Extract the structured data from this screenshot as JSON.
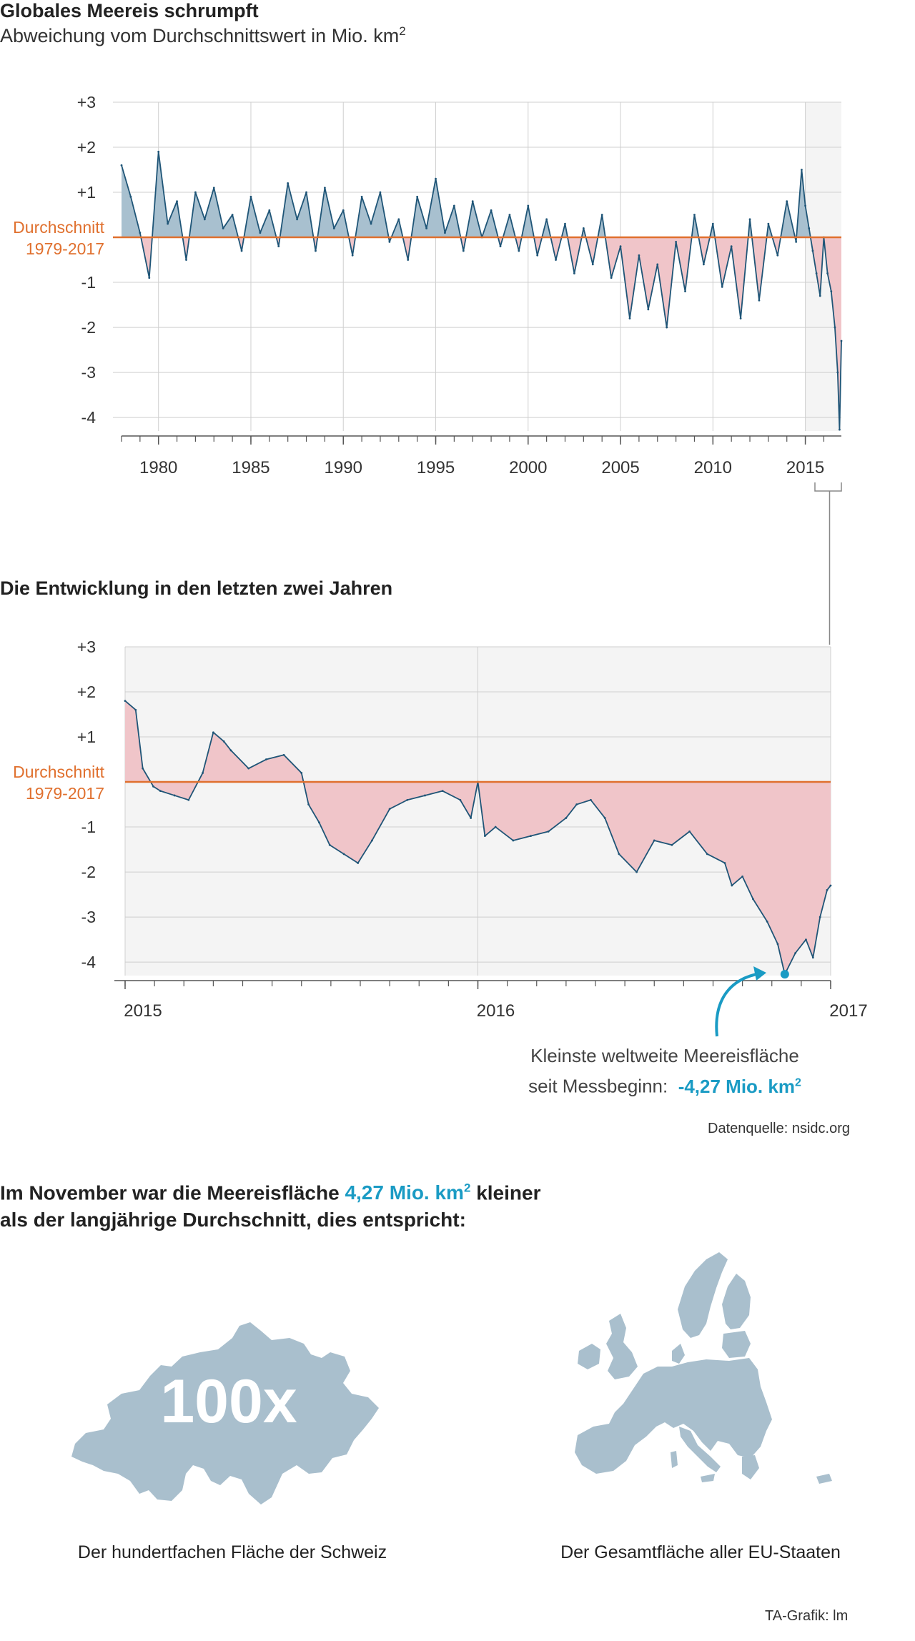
{
  "header": {
    "title": "Globales Meereis schrumpft",
    "subtitle": "Abweichung vom Durchschnittswert in Mio. km",
    "subtitle_sup": "2"
  },
  "section2": {
    "title": "Die Entwicklung in den letzten zwei Jahren"
  },
  "annotation": {
    "line1": "Kleinste weltweite Meereisfläche",
    "line2": "seit Messbeginn:",
    "value": "-4,27 Mio. km",
    "value_sup": "2"
  },
  "source": "Datenquelle: nsidc.org",
  "summary": {
    "text1": "Im November war die Meereisfläche",
    "highlight": "4,27 Mio. km",
    "highlight_sup": "2",
    "text2": "kleiner",
    "line2": "als der langjährige Durchschnitt, dies entspricht:"
  },
  "comparisons": {
    "switzerland": {
      "badge": "100x",
      "caption": "Der hundertfachen Fläche der Schweiz"
    },
    "eu": {
      "caption": "Der Gesamtfläche aller EU-Staaten"
    }
  },
  "credit": "TA-Grafik: lm",
  "colors": {
    "line": "#1f5577",
    "positive_fill": "#a8c0cf",
    "negative_fill": "#f0c5c9",
    "average_line": "#e0702e",
    "highlight": "#1a9bc4",
    "map_fill": "#a9bfcd",
    "panel_bg": "#f4f4f4",
    "grid": "#cfcfcf"
  },
  "chart_data": [
    {
      "type": "area",
      "title": "Globales Meereis schrumpft",
      "ylabel": "Abweichung vom Durchschnittswert in Mio. km2",
      "ylim": [
        -4.3,
        3
      ],
      "xlim": [
        1978.0,
        2016.95
      ],
      "yticks": [
        3,
        2,
        1,
        0,
        -1,
        -2,
        -3,
        -4
      ],
      "ytick_labels": [
        "+3",
        "+2",
        "+1",
        "",
        "-1",
        "-2",
        "-3",
        "-4"
      ],
      "xticks": [
        1980,
        1985,
        1990,
        1995,
        2000,
        2005,
        2010,
        2015
      ],
      "xtick_labels": [
        "1980",
        "1985",
        "1990",
        "1995",
        "2000",
        "2005",
        "2010",
        "2015"
      ],
      "reference": {
        "value": 0,
        "label_line1": "Durchschnitt",
        "label_line2": "1979-2017"
      },
      "highlight_range": [
        2015.0,
        2016.95
      ],
      "grid": true,
      "x": [
        1978.0,
        1978.5,
        1979.0,
        1979.5,
        1980.0,
        1980.5,
        1981.0,
        1981.5,
        1982.0,
        1982.5,
        1983.0,
        1983.5,
        1984.0,
        1984.5,
        1985.0,
        1985.5,
        1986.0,
        1986.5,
        1987.0,
        1987.5,
        1988.0,
        1988.5,
        1989.0,
        1989.5,
        1990.0,
        1990.5,
        1991.0,
        1991.5,
        1992.0,
        1992.5,
        1993.0,
        1993.5,
        1994.0,
        1994.5,
        1995.0,
        1995.5,
        1996.0,
        1996.5,
        1997.0,
        1997.5,
        1998.0,
        1998.5,
        1999.0,
        1999.5,
        2000.0,
        2000.5,
        2001.0,
        2001.5,
        2002.0,
        2002.5,
        2003.0,
        2003.5,
        2004.0,
        2004.5,
        2005.0,
        2005.5,
        2006.0,
        2006.5,
        2007.0,
        2007.5,
        2008.0,
        2008.5,
        2009.0,
        2009.5,
        2010.0,
        2010.5,
        2011.0,
        2011.5,
        2012.0,
        2012.5,
        2013.0,
        2013.5,
        2014.0,
        2014.5,
        2014.8,
        2015.0,
        2015.2,
        2015.4,
        2015.6,
        2015.8,
        2016.0,
        2016.2,
        2016.4,
        2016.6,
        2016.75,
        2016.85,
        2016.95
      ],
      "values": [
        1.6,
        0.9,
        0.1,
        -0.9,
        1.9,
        0.3,
        0.8,
        -0.5,
        1.0,
        0.4,
        1.1,
        0.2,
        0.5,
        -0.3,
        0.9,
        0.1,
        0.6,
        -0.2,
        1.2,
        0.4,
        1.0,
        -0.3,
        1.1,
        0.2,
        0.6,
        -0.4,
        0.9,
        0.3,
        1.0,
        -0.1,
        0.4,
        -0.5,
        0.9,
        0.2,
        1.3,
        0.1,
        0.7,
        -0.3,
        0.8,
        0.0,
        0.6,
        -0.2,
        0.5,
        -0.3,
        0.7,
        -0.4,
        0.4,
        -0.5,
        0.3,
        -0.8,
        0.2,
        -0.6,
        0.5,
        -0.9,
        -0.2,
        -1.8,
        -0.4,
        -1.6,
        -0.6,
        -2.0,
        -0.1,
        -1.2,
        0.5,
        -0.6,
        0.3,
        -1.1,
        -0.2,
        -1.8,
        0.4,
        -1.4,
        0.3,
        -0.4,
        0.8,
        -0.1,
        1.5,
        0.7,
        0.2,
        -0.3,
        -0.8,
        -1.3,
        0.0,
        -0.8,
        -1.2,
        -2.0,
        -3.0,
        -4.27,
        -2.3
      ]
    },
    {
      "type": "area",
      "title": "Die Entwicklung in den letzten zwei Jahren",
      "ylim": [
        -4.3,
        3
      ],
      "xlim": [
        2015.0,
        2017.0
      ],
      "yticks": [
        3,
        2,
        1,
        0,
        -1,
        -2,
        -3,
        -4
      ],
      "ytick_labels": [
        "+3",
        "+2",
        "+1",
        "",
        "-1",
        "-2",
        "-3",
        "-4"
      ],
      "xticks": [
        2015,
        2016,
        2017
      ],
      "xtick_labels": [
        "2015",
        "2016",
        "2017"
      ],
      "reference": {
        "value": 0,
        "label_line1": "Durchschnitt",
        "label_line2": "1979-2017"
      },
      "grid": true,
      "x": [
        2015.0,
        2015.03,
        2015.05,
        2015.08,
        2015.1,
        2015.14,
        2015.18,
        2015.22,
        2015.25,
        2015.28,
        2015.3,
        2015.35,
        2015.4,
        2015.45,
        2015.5,
        2015.52,
        2015.55,
        2015.58,
        2015.62,
        2015.66,
        2015.7,
        2015.75,
        2015.8,
        2015.85,
        2015.9,
        2015.95,
        2015.98,
        2016.0,
        2016.02,
        2016.05,
        2016.1,
        2016.15,
        2016.2,
        2016.25,
        2016.28,
        2016.32,
        2016.36,
        2016.4,
        2016.45,
        2016.5,
        2016.55,
        2016.6,
        2016.65,
        2016.7,
        2016.72,
        2016.75,
        2016.78,
        2016.82,
        2016.85,
        2016.87,
        2016.9,
        2016.93,
        2016.95,
        2016.97,
        2016.99,
        2017.0
      ],
      "values": [
        1.8,
        1.6,
        0.3,
        -0.1,
        -0.2,
        -0.3,
        -0.4,
        0.2,
        1.1,
        0.9,
        0.7,
        0.3,
        0.5,
        0.6,
        0.2,
        -0.5,
        -0.9,
        -1.4,
        -1.6,
        -1.8,
        -1.3,
        -0.6,
        -0.4,
        -0.3,
        -0.2,
        -0.4,
        -0.8,
        0.0,
        -1.2,
        -1.0,
        -1.3,
        -1.2,
        -1.1,
        -0.8,
        -0.5,
        -0.4,
        -0.8,
        -1.6,
        -2.0,
        -1.3,
        -1.4,
        -1.1,
        -1.6,
        -1.8,
        -2.3,
        -2.1,
        -2.6,
        -3.1,
        -3.6,
        -4.27,
        -3.8,
        -3.5,
        -3.9,
        -3.0,
        -2.4,
        -2.3
      ]
    }
  ]
}
